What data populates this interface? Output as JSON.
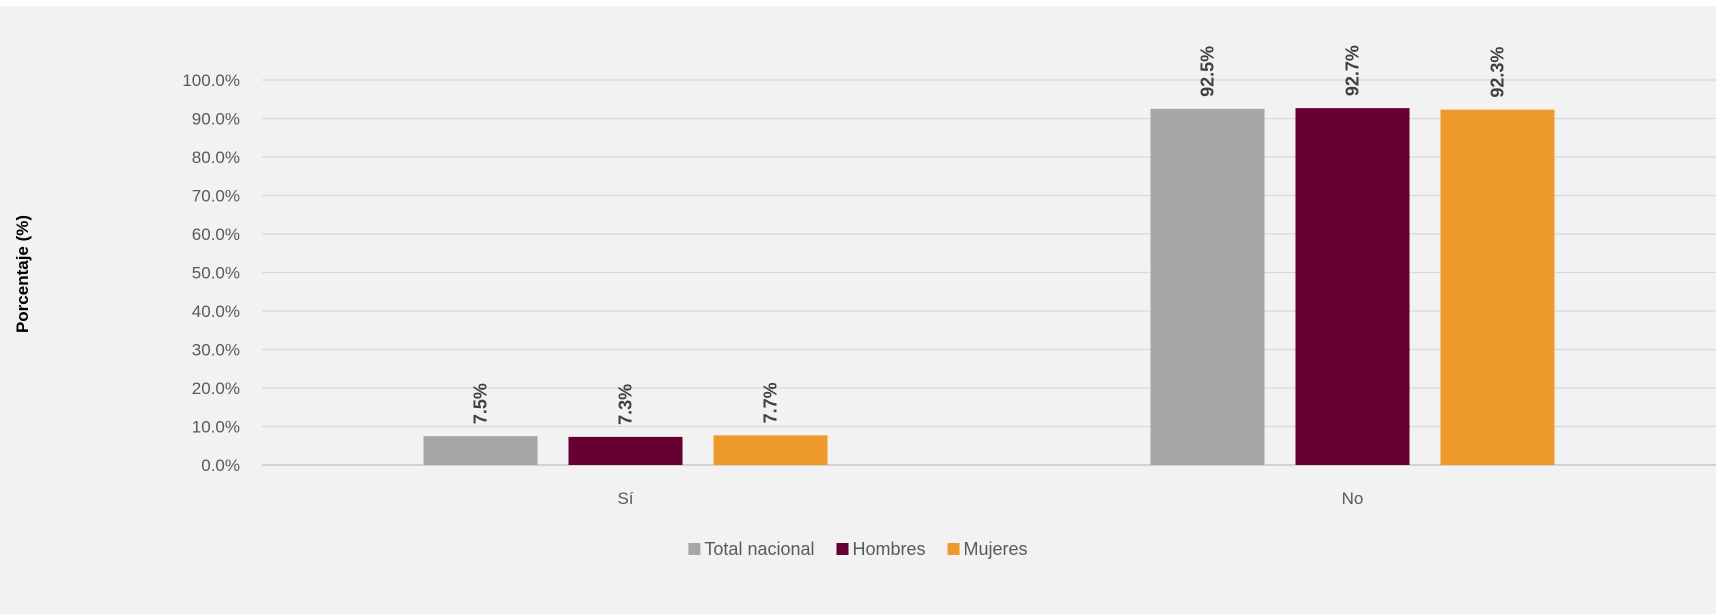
{
  "chart_data": {
    "type": "bar",
    "title": "",
    "xlabel": "",
    "ylabel": "Porcentaje (%)",
    "categories": [
      "Sí",
      "No"
    ],
    "series": [
      {
        "name": "Total nacional",
        "values": [
          7.5,
          92.5
        ],
        "labels": [
          "7.5%",
          "92.5%"
        ],
        "color": "#a6a6a6"
      },
      {
        "name": "Hombres",
        "values": [
          7.3,
          92.7
        ],
        "labels": [
          "7.3%",
          "92.7%"
        ],
        "color": "#660033"
      },
      {
        "name": "Mujeres",
        "values": [
          7.7,
          92.3
        ],
        "labels": [
          "7.7%",
          "92.3%"
        ],
        "color": "#ee9a2a"
      }
    ],
    "ylim": [
      0,
      100
    ],
    "yticks": [
      "0.0%",
      "10.0%",
      "20.0%",
      "30.0%",
      "40.0%",
      "50.0%",
      "60.0%",
      "70.0%",
      "80.0%",
      "90.0%",
      "100.0%"
    ],
    "grid": true,
    "legend_position": "bottom"
  }
}
